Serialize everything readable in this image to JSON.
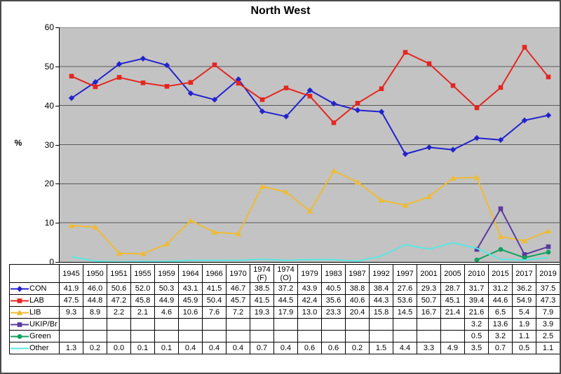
{
  "window": {
    "background": "#ffffff",
    "border_color": "#4a4a4a"
  },
  "chart_data": {
    "type": "line",
    "title": "North West",
    "ylabel": "%",
    "xlabel": "",
    "ylim": [
      0,
      60
    ],
    "yticks": [
      0,
      10,
      20,
      30,
      40,
      50,
      60
    ],
    "grid": true,
    "legend_position": "table-left-column",
    "plot_background": "#c3c3c3",
    "gridline_color": "#595959",
    "axis_color": "#000000",
    "categories": [
      "1945",
      "1950",
      "1951",
      "1955",
      "1959",
      "1964",
      "1966",
      "1970",
      "1974 (F)",
      "1974 (O)",
      "1979",
      "1983",
      "1987",
      "1992",
      "1997",
      "2001",
      "2005",
      "2010",
      "2015",
      "2017",
      "2019"
    ],
    "series": [
      {
        "name": "CON",
        "color": "#2323cd",
        "marker": "diamond",
        "values": [
          41.9,
          46.0,
          50.6,
          52.0,
          50.3,
          43.1,
          41.5,
          46.7,
          38.5,
          37.2,
          43.9,
          40.5,
          38.8,
          38.4,
          27.6,
          29.3,
          28.7,
          31.7,
          31.2,
          36.2,
          37.5
        ]
      },
      {
        "name": "LAB",
        "color": "#e52620",
        "marker": "square",
        "values": [
          47.5,
          44.8,
          47.2,
          45.8,
          44.9,
          45.9,
          50.4,
          45.7,
          41.5,
          44.5,
          42.4,
          35.6,
          40.6,
          44.3,
          53.6,
          50.7,
          45.1,
          39.4,
          44.6,
          54.9,
          47.3
        ]
      },
      {
        "name": "LIB",
        "color": "#eebb33",
        "marker": "triangle",
        "values": [
          9.3,
          8.9,
          2.2,
          2.1,
          4.6,
          10.6,
          7.6,
          7.2,
          19.3,
          17.9,
          13.0,
          23.3,
          20.4,
          15.8,
          14.5,
          16.7,
          21.4,
          21.6,
          6.5,
          5.4,
          7.9
        ]
      },
      {
        "name": "UKIP/Br",
        "color": "#5c3b9e",
        "marker": "square",
        "values": [
          null,
          null,
          null,
          null,
          null,
          null,
          null,
          null,
          null,
          null,
          null,
          null,
          null,
          null,
          null,
          null,
          null,
          3.2,
          13.6,
          1.9,
          3.9
        ]
      },
      {
        "name": "Green",
        "color": "#12a05f",
        "marker": "circle",
        "values": [
          null,
          null,
          null,
          null,
          null,
          null,
          null,
          null,
          null,
          null,
          null,
          null,
          null,
          null,
          null,
          null,
          null,
          0.5,
          3.2,
          1.1,
          2.5
        ]
      },
      {
        "name": "Other",
        "color": "#58e8e2",
        "marker": "none",
        "values": [
          1.3,
          0.2,
          0.0,
          0.1,
          0.1,
          0.4,
          0.4,
          0.4,
          0.7,
          0.4,
          0.6,
          0.6,
          0.2,
          1.5,
          4.4,
          3.3,
          4.9,
          3.5,
          0.7,
          0.5,
          1.1
        ]
      }
    ]
  }
}
